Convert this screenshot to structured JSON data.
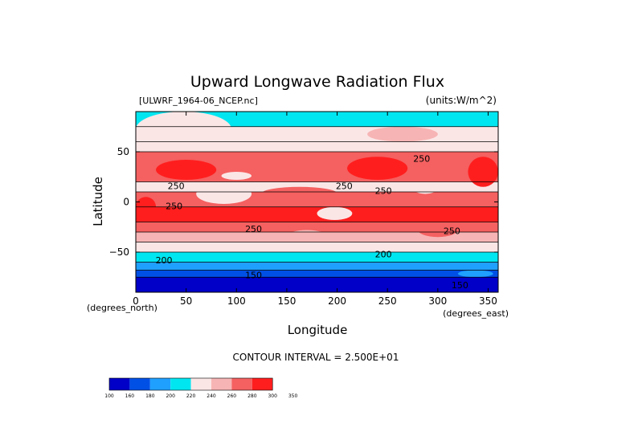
{
  "chart_data": {
    "type": "heatmap",
    "title": "Upward Longwave Radiation Flux",
    "file_label": "[ULWRF_1964-06_NCEP.nc]",
    "units_label": "(units:W/m^2)",
    "xlabel": "Longitude",
    "ylabel": "Latitude",
    "x_units": "(degrees_east)",
    "y_units": "(degrees_north)",
    "xlim": [
      0,
      360
    ],
    "ylim": [
      -90,
      90
    ],
    "x_ticks": [
      "0",
      "50",
      "100",
      "150",
      "200",
      "250",
      "300",
      "350"
    ],
    "x_tick_values": [
      0,
      50,
      100,
      150,
      200,
      250,
      300,
      350
    ],
    "y_ticks": [
      "50",
      "0",
      "−50"
    ],
    "y_tick_values": [
      50,
      0,
      -50
    ],
    "contour_interval_text": "CONTOUR INTERVAL = 2.500E+01",
    "colorbar": {
      "levels": [
        "100",
        "160",
        "180",
        "200",
        "220",
        "240",
        "260",
        "280",
        "300",
        "350"
      ],
      "colors": [
        "#0000c8",
        "#0050e6",
        "#1fa0ff",
        "#00e6f0",
        "#fbe6e6",
        "#f7b4b4",
        "#f56060",
        "#ff1e1e"
      ]
    },
    "contour_labels": [
      {
        "text": "250",
        "lon": 40,
        "lat": 13
      },
      {
        "text": "250",
        "lon": 38,
        "lat": -7
      },
      {
        "text": "250",
        "lon": 207,
        "lat": 13
      },
      {
        "text": "250",
        "lon": 246,
        "lat": 8
      },
      {
        "text": "250",
        "lon": 284,
        "lat": 40
      },
      {
        "text": "250",
        "lon": 314,
        "lat": -32
      },
      {
        "text": "250",
        "lon": 117,
        "lat": -30
      },
      {
        "text": "200",
        "lon": 28,
        "lat": -61
      },
      {
        "text": "200",
        "lon": 246,
        "lat": -55
      },
      {
        "text": "150",
        "lon": 117,
        "lat": -76
      },
      {
        "text": "150",
        "lon": 322,
        "lat": -86
      }
    ],
    "bands": [
      {
        "lat": [
          75,
          90
        ],
        "value": 215
      },
      {
        "lat": [
          60,
          75
        ],
        "value": 226
      },
      {
        "lat": [
          50,
          60
        ],
        "value": 233
      },
      {
        "lat": [
          20,
          50
        ],
        "value": 275
      },
      {
        "lat": [
          10,
          20
        ],
        "value": 228
      },
      {
        "lat": [
          -5,
          10
        ],
        "value": 262
      },
      {
        "lat": [
          -20,
          -5
        ],
        "value": 282
      },
      {
        "lat": [
          -30,
          -20
        ],
        "value": 262
      },
      {
        "lat": [
          -40,
          -30
        ],
        "value": 243
      },
      {
        "lat": [
          -50,
          -40
        ],
        "value": 225
      },
      {
        "lat": [
          -60,
          -50
        ],
        "value": 209
      },
      {
        "lat": [
          -68,
          -60
        ],
        "value": 192
      },
      {
        "lat": [
          -75,
          -68
        ],
        "value": 168
      },
      {
        "lat": [
          -90,
          -75
        ],
        "value": 140
      }
    ],
    "regions": [
      {
        "lon": [
          0,
          95
        ],
        "lat": [
          55,
          90
        ],
        "value": 233
      },
      {
        "lon": [
          230,
          300
        ],
        "lat": [
          60,
          75
        ],
        "value": 247
      },
      {
        "lon": [
          20,
          80
        ],
        "lat": [
          22,
          42
        ],
        "value": 305
      },
      {
        "lon": [
          330,
          360
        ],
        "lat": [
          15,
          45
        ],
        "value": 305
      },
      {
        "lon": [
          85,
          115
        ],
        "lat": [
          22,
          30
        ],
        "value": 226
      },
      {
        "lon": [
          210,
          270
        ],
        "lat": [
          22,
          45
        ],
        "value": 283
      },
      {
        "lon": [
          60,
          115
        ],
        "lat": [
          -2,
          18
        ],
        "value": 226
      },
      {
        "lon": [
          125,
          200
        ],
        "lat": [
          2,
          15
        ],
        "value": 268
      },
      {
        "lon": [
          275,
          300
        ],
        "lat": [
          8,
          20
        ],
        "value": 225
      },
      {
        "lon": [
          180,
          215
        ],
        "lat": [
          -18,
          -5
        ],
        "value": 226
      },
      {
        "lon": [
          0,
          20
        ],
        "lat": [
          -15,
          5
        ],
        "value": 300
      },
      {
        "lon": [
          280,
          320
        ],
        "lat": [
          -35,
          -20
        ],
        "value": 265
      },
      {
        "lon": [
          150,
          190
        ],
        "lat": [
          -40,
          -28
        ],
        "value": 246
      },
      {
        "lon": [
          320,
          355
        ],
        "lat": [
          -75,
          -68
        ],
        "value": 190
      }
    ]
  }
}
